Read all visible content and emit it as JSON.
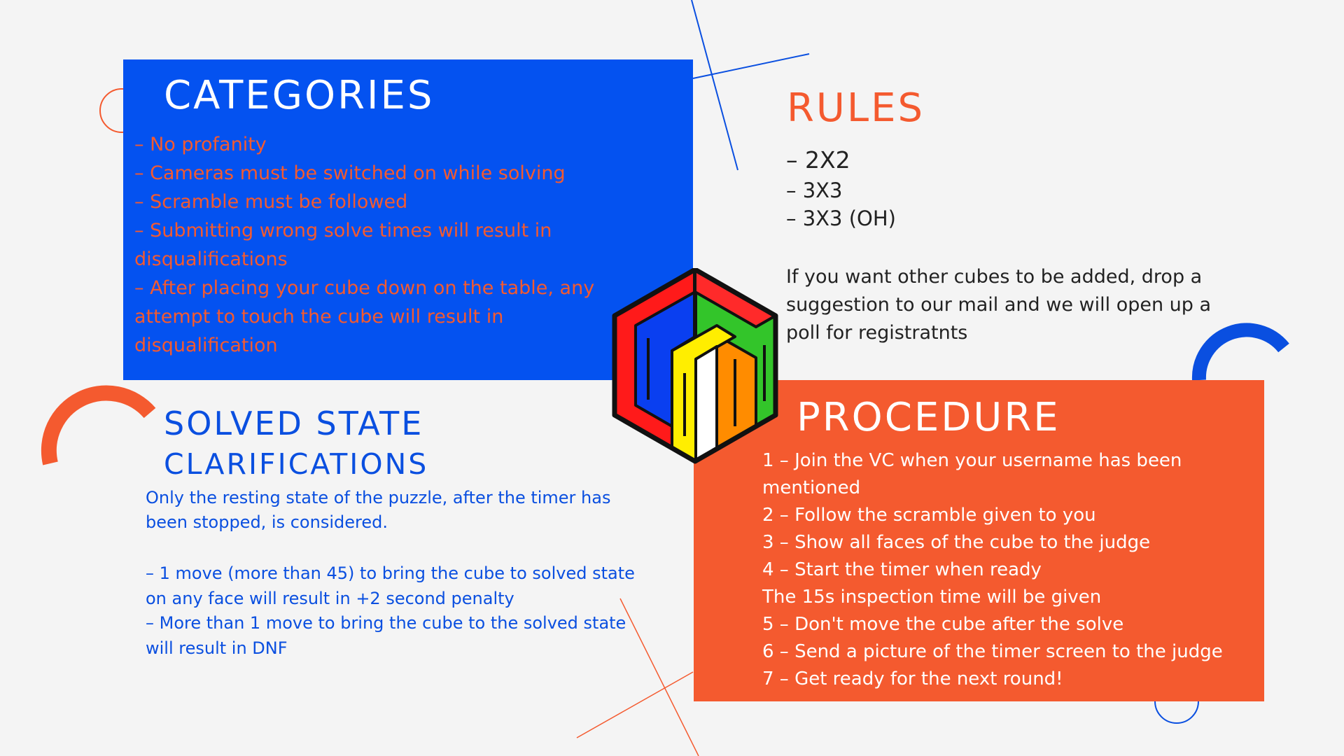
{
  "categories_section": {
    "heading": "CATEGORIES",
    "items": [
      "– No profanity",
      "– Cameras must be switched on while solving",
      "– Scramble must be followed",
      "– Submitting wrong solve times will result in disqualifications",
      "– After placing your cube down on the table, any attempt to touch the cube will result in disqualification"
    ]
  },
  "rules_section": {
    "heading": "RULES",
    "items": [
      "– 2X2",
      "– 3X3",
      "– 3X3 (OH)"
    ],
    "note": "If you want other cubes to be added, drop a suggestion to our mail and we will open up a poll for registratnts"
  },
  "solved_section": {
    "heading_line1": "SOLVED STATE",
    "heading_line2": "CLARIFICATIONS",
    "intro": "Only the resting state of the puzzle, after the timer has been stopped, is considered.",
    "items": [
      "– 1 move (more than 45) to bring the cube to solved state on any face will result in +2 second penalty",
      "– More than 1 move to bring the cube to the solved state will result in DNF"
    ]
  },
  "procedure_section": {
    "heading": "PROCEDURE",
    "items": [
      "1 – Join the VC when your username has been mentioned",
      "2 – Follow the scramble given to you",
      "3 – Show all faces of the cube to the judge",
      "4 – Start the timer when ready",
      "The 15s inspection time will be given",
      "5 – Don't move the cube after the solve",
      "6 – Send a picture of the timer screen to the judge",
      "7 – Get ready for the next round!"
    ]
  },
  "colors": {
    "brand_blue": "#0452f0",
    "brand_orange": "#f45a2f",
    "background": "#f4f4f4"
  },
  "icons": [
    "cube-logo-icon"
  ]
}
